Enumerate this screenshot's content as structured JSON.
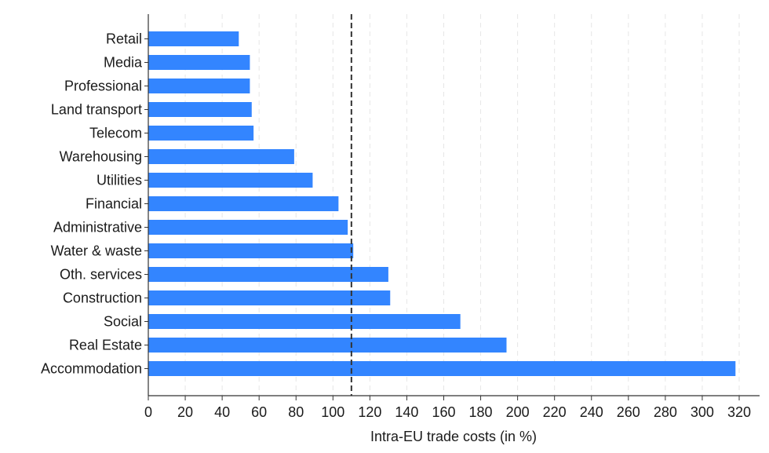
{
  "chart_data": {
    "type": "bar",
    "orientation": "horizontal",
    "categories": [
      "Retail",
      "Media",
      "Professional",
      "Land transport",
      "Telecom",
      "Warehousing",
      "Utilities",
      "Financial",
      "Administrative",
      "Water & waste",
      "Oth. services",
      "Construction",
      "Social",
      "Real Estate",
      "Accommodation"
    ],
    "values": [
      49,
      55,
      55,
      56,
      57,
      79,
      89,
      103,
      108,
      111,
      130,
      131,
      169,
      194,
      318
    ],
    "xlabel": "Intra-EU trade costs (in %)",
    "xlim": [
      0,
      320
    ],
    "xticks": [
      0,
      20,
      40,
      60,
      80,
      100,
      120,
      140,
      160,
      180,
      200,
      220,
      240,
      260,
      280,
      300,
      320
    ],
    "reference_line": {
      "x": 110,
      "style": "dashed"
    },
    "grid": "vertical dashed",
    "colors": {
      "bar": "#3385ff",
      "grid": "#e6e6e6",
      "axis": "#333333",
      "reference": "#333333"
    }
  }
}
